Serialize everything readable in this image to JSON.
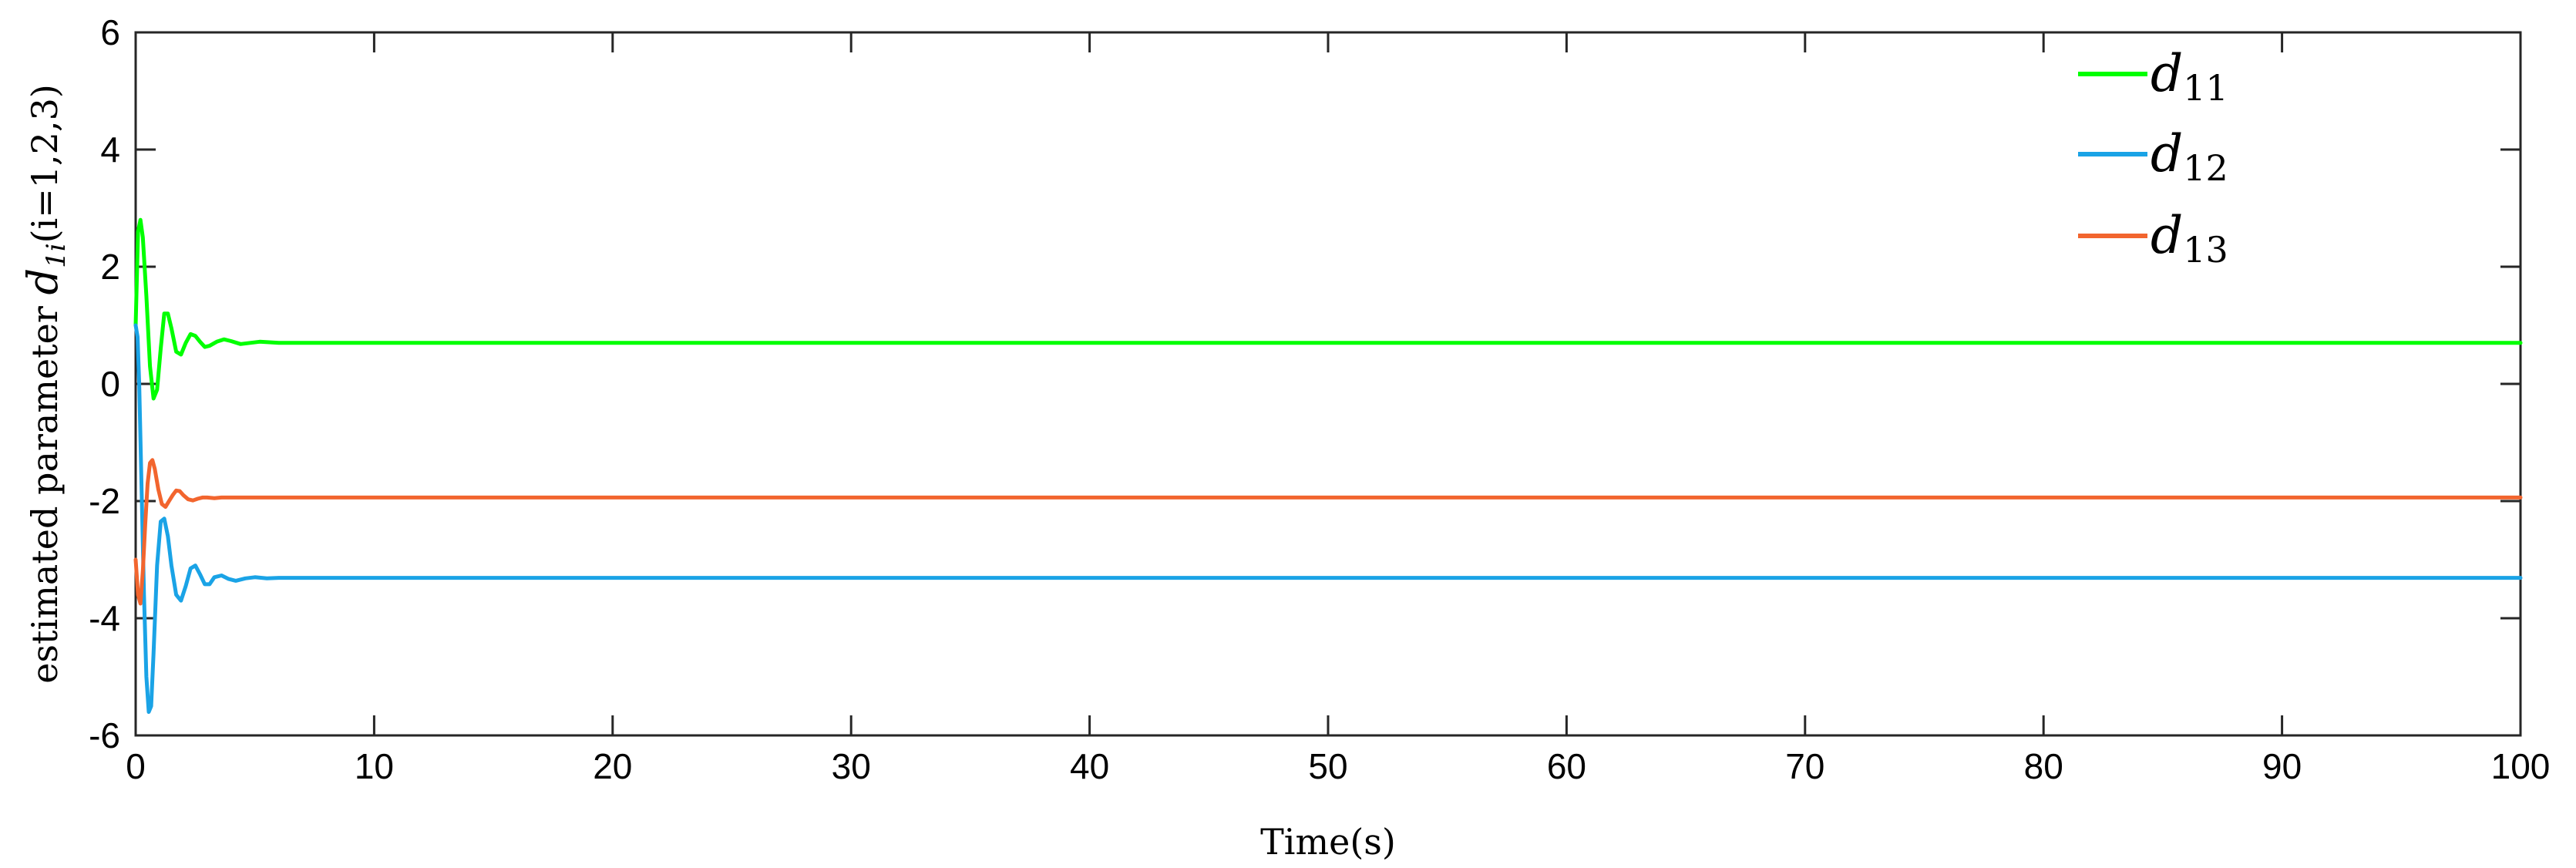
{
  "chart_data": {
    "type": "line",
    "xlabel": "Time(s)",
    "ylabel": {
      "prefix": "estimated parameter ",
      "symbol": "d",
      "subscript": "1i",
      "suffix": "(i=1,2,3)"
    },
    "xlim": [
      0,
      100
    ],
    "ylim": [
      -6,
      6
    ],
    "xticks": [
      0,
      10,
      20,
      30,
      40,
      50,
      60,
      70,
      80,
      90,
      100
    ],
    "yticks": [
      -6,
      -4,
      -2,
      0,
      2,
      4,
      6
    ],
    "grid": false,
    "legend_position": "top-right",
    "series": [
      {
        "name": "d_11",
        "label_main": "d",
        "label_sub": "11",
        "color": "#00ff00",
        "x": [
          0,
          0.1,
          0.2,
          0.3,
          0.45,
          0.6,
          0.75,
          0.9,
          1.05,
          1.2,
          1.35,
          1.5,
          1.7,
          1.9,
          2.1,
          2.3,
          2.5,
          2.7,
          2.9,
          3.1,
          3.4,
          3.7,
          4.0,
          4.4,
          4.8,
          5.2,
          5.6,
          6.0,
          7,
          8,
          10,
          20,
          40,
          60,
          80,
          100
        ],
        "y": [
          1.0,
          2.6,
          2.8,
          2.5,
          1.5,
          0.3,
          -0.25,
          -0.1,
          0.6,
          1.2,
          1.2,
          0.95,
          0.55,
          0.5,
          0.7,
          0.85,
          0.82,
          0.72,
          0.63,
          0.65,
          0.72,
          0.76,
          0.73,
          0.68,
          0.7,
          0.72,
          0.71,
          0.7,
          0.7,
          0.7,
          0.7,
          0.7,
          0.7,
          0.7,
          0.7,
          0.7
        ]
      },
      {
        "name": "d_12",
        "label_main": "d",
        "label_sub": "12",
        "color": "#1aa3e6",
        "x": [
          0,
          0.08,
          0.15,
          0.25,
          0.35,
          0.45,
          0.55,
          0.65,
          0.75,
          0.9,
          1.05,
          1.2,
          1.35,
          1.5,
          1.7,
          1.9,
          2.1,
          2.3,
          2.5,
          2.7,
          2.9,
          3.1,
          3.3,
          3.6,
          3.9,
          4.2,
          4.6,
          5.0,
          5.5,
          6.0,
          7,
          8,
          10,
          20,
          40,
          60,
          80,
          100
        ],
        "y": [
          1.0,
          0.8,
          0.0,
          -1.8,
          -3.6,
          -5.0,
          -5.6,
          -5.5,
          -4.6,
          -3.1,
          -2.35,
          -2.3,
          -2.6,
          -3.1,
          -3.6,
          -3.7,
          -3.45,
          -3.15,
          -3.1,
          -3.25,
          -3.42,
          -3.42,
          -3.3,
          -3.27,
          -3.33,
          -3.36,
          -3.32,
          -3.3,
          -3.32,
          -3.31,
          -3.31,
          -3.31,
          -3.31,
          -3.31,
          -3.31,
          -3.31,
          -3.31,
          -3.31
        ]
      },
      {
        "name": "d_13",
        "label_main": "d",
        "label_sub": "13",
        "color": "#f2652e",
        "x": [
          0,
          0.1,
          0.2,
          0.3,
          0.4,
          0.5,
          0.6,
          0.7,
          0.8,
          0.95,
          1.1,
          1.25,
          1.4,
          1.55,
          1.7,
          1.85,
          2.0,
          2.2,
          2.4,
          2.6,
          2.8,
          3.0,
          3.3,
          3.6,
          4.0,
          4.5,
          5.0,
          6.0,
          8,
          10,
          20,
          40,
          60,
          80,
          100
        ],
        "y": [
          -3.0,
          -3.6,
          -3.75,
          -3.2,
          -2.4,
          -1.7,
          -1.35,
          -1.3,
          -1.45,
          -1.8,
          -2.05,
          -2.1,
          -2.0,
          -1.9,
          -1.82,
          -1.83,
          -1.9,
          -1.97,
          -1.99,
          -1.96,
          -1.94,
          -1.94,
          -1.95,
          -1.94,
          -1.94,
          -1.94,
          -1.94,
          -1.94,
          -1.94,
          -1.94,
          -1.94,
          -1.94,
          -1.94,
          -1.94,
          -1.94
        ]
      }
    ]
  }
}
